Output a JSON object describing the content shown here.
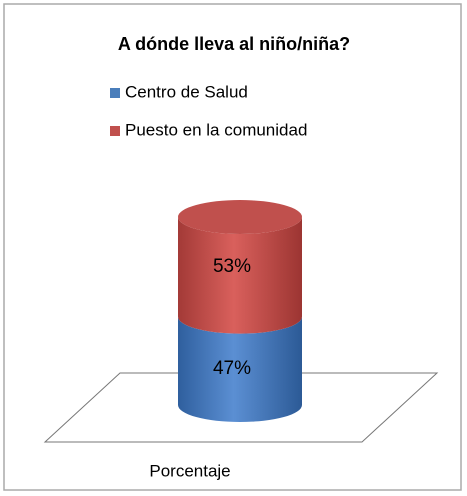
{
  "chart_data": {
    "type": "bar",
    "stacked": true,
    "title": "A dónde lleva al niño/niña?",
    "categories": [
      "Porcentaje"
    ],
    "series": [
      {
        "name": "Centro de Salud",
        "color": "#4a7ebb",
        "values": [
          47
        ],
        "value_labels": [
          "47%"
        ]
      },
      {
        "name": "Puesto en la comunidad",
        "color": "#c0504d",
        "values": [
          53
        ],
        "value_labels": [
          "53%"
        ]
      }
    ]
  }
}
